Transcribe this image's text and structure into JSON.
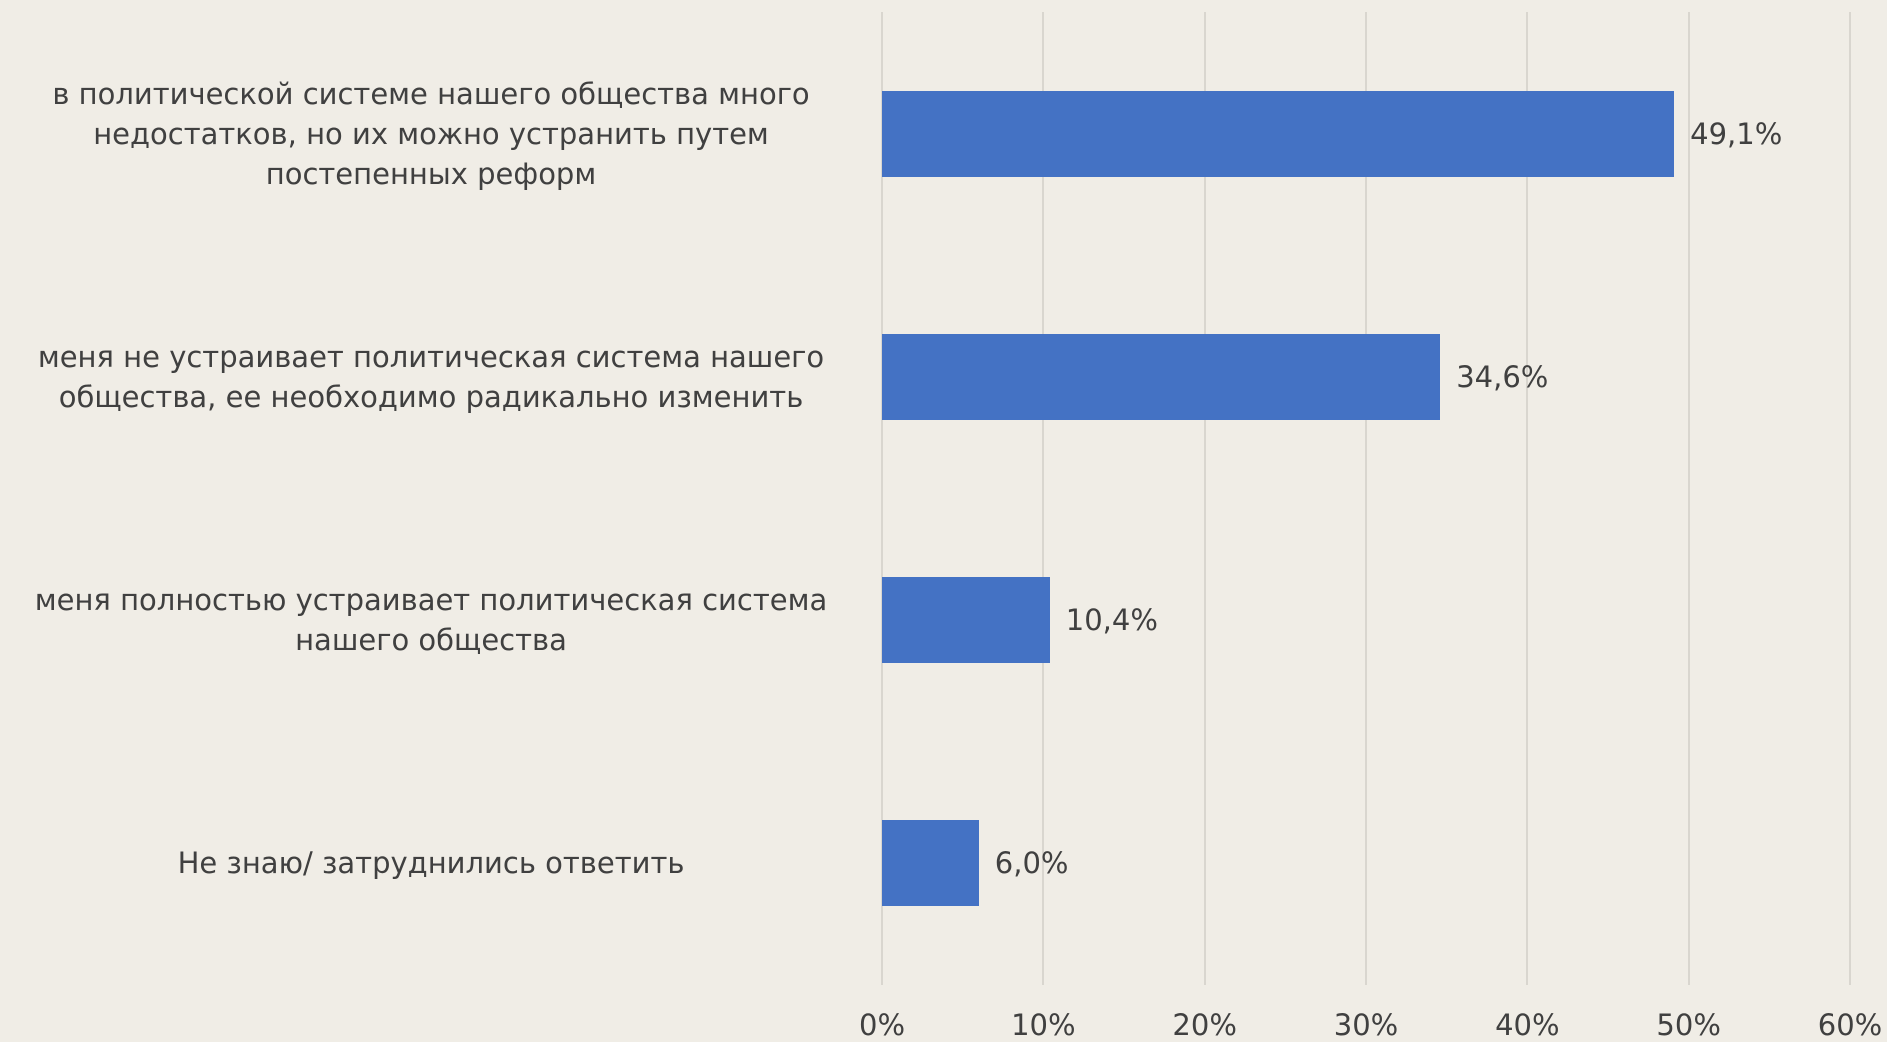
{
  "chart_data": {
    "type": "barh",
    "categories": [
      "в политической системе нашего общества много недостатков, но их можно устранить путем постепенных реформ",
      "меня не устраивает политическая система нашего общества, ее необходимо радикально изменить",
      "меня полностью устраивает политическая система нашего общества",
      "Не знаю/ затруднились ответить"
    ],
    "values": [
      49.1,
      34.6,
      10.4,
      6.0
    ],
    "value_labels": [
      "49,1%",
      "34,6%",
      "10,4%",
      "6,0%"
    ],
    "color": "#4472c4",
    "xlim": [
      0,
      60
    ],
    "xticks": [
      {
        "value": 0,
        "label": "0%"
      },
      {
        "value": 10,
        "label": "10%"
      },
      {
        "value": 20,
        "label": "20%"
      },
      {
        "value": 30,
        "label": "30%"
      },
      {
        "value": 40,
        "label": "40%"
      },
      {
        "value": 50,
        "label": "50%"
      },
      {
        "value": 60,
        "label": "60%"
      }
    ],
    "grid": true
  }
}
